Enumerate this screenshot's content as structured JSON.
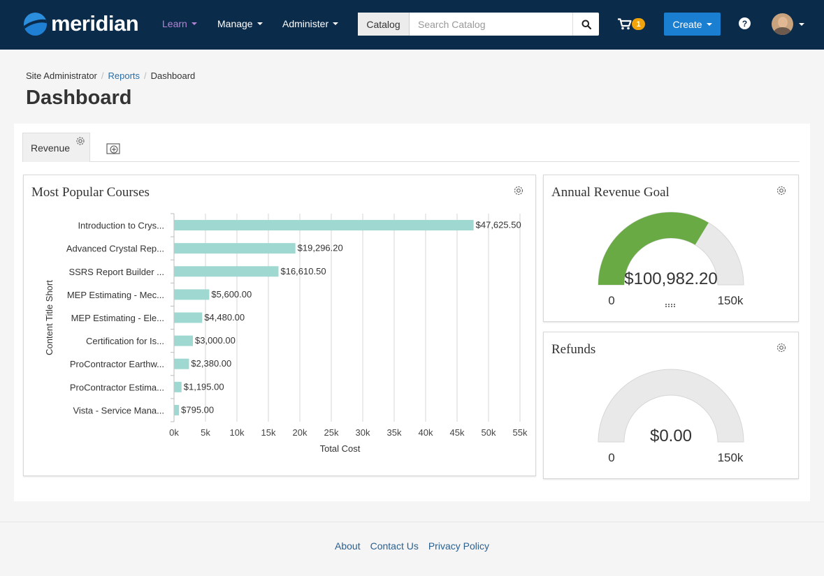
{
  "brand": {
    "name": "meridian"
  },
  "nav": {
    "learn": "Learn",
    "manage": "Manage",
    "administer": "Administer"
  },
  "search": {
    "scope": "Catalog",
    "placeholder": "Search Catalog"
  },
  "cart": {
    "count": "1"
  },
  "create_label": "Create",
  "help_label": "?",
  "breadcrumb": {
    "items": [
      "Site Administrator",
      "Reports",
      "Dashboard"
    ]
  },
  "page_title": "Dashboard",
  "tabs": [
    {
      "label": "Revenue"
    }
  ],
  "widgets": {
    "popular": {
      "title": "Most Popular Courses"
    },
    "goal": {
      "title": "Annual Revenue Goal"
    },
    "refunds": {
      "title": "Refunds"
    }
  },
  "chart_data": [
    {
      "type": "bar",
      "orientation": "horizontal",
      "title": "Most Popular Courses",
      "xlabel": "Total Cost",
      "ylabel": "Content Title Short",
      "categories": [
        "Introduction to Crys...",
        "Advanced Crystal Rep...",
        "SSRS Report Builder ...",
        "MEP Estimating - Mec...",
        "MEP Estimating - Ele...",
        "Certification for Is...",
        "ProContractor Earthw...",
        "ProContractor Estima...",
        "Vista - Service Mana..."
      ],
      "values": [
        47625.5,
        19296.2,
        16610.5,
        5600.0,
        4480.0,
        3000.0,
        2380.0,
        1195.0,
        795.0
      ],
      "data_labels": [
        "$47,625.50",
        "$19,296.20",
        "$16,610.50",
        "$5,600.00",
        "$4,480.00",
        "$3,000.00",
        "$2,380.00",
        "$1,195.00",
        "$795.00"
      ],
      "xlim": [
        0,
        55000
      ],
      "xticks": [
        0,
        5000,
        10000,
        15000,
        20000,
        25000,
        30000,
        35000,
        40000,
        45000,
        50000,
        55000
      ],
      "xtick_labels": [
        "0k",
        "5k",
        "10k",
        "15k",
        "20k",
        "25k",
        "30k",
        "35k",
        "40k",
        "45k",
        "50k",
        "55k"
      ],
      "grid": true,
      "bar_color": "#9fd8d0"
    },
    {
      "type": "gauge",
      "title": "Annual Revenue Goal",
      "value": 100982.2,
      "value_label": "$100,982.20",
      "min": 0,
      "max": 150000,
      "min_label": "0",
      "max_label": "150k",
      "fill_color": "#6aaa45",
      "track_color": "#e9e9e9"
    },
    {
      "type": "gauge",
      "title": "Refunds",
      "value": 0,
      "value_label": "$0.00",
      "min": 0,
      "max": 150000,
      "min_label": "0",
      "max_label": "150k",
      "fill_color": "#6aaa45",
      "track_color": "#e9e9e9"
    }
  ],
  "footer": {
    "about": "About",
    "contact": "Contact Us",
    "privacy": "Privacy Policy"
  },
  "colors": {
    "navbar": "#0b2b4a",
    "primary": "#1a7fd0",
    "badge": "#f0a30a",
    "link": "#2a6ea6"
  }
}
